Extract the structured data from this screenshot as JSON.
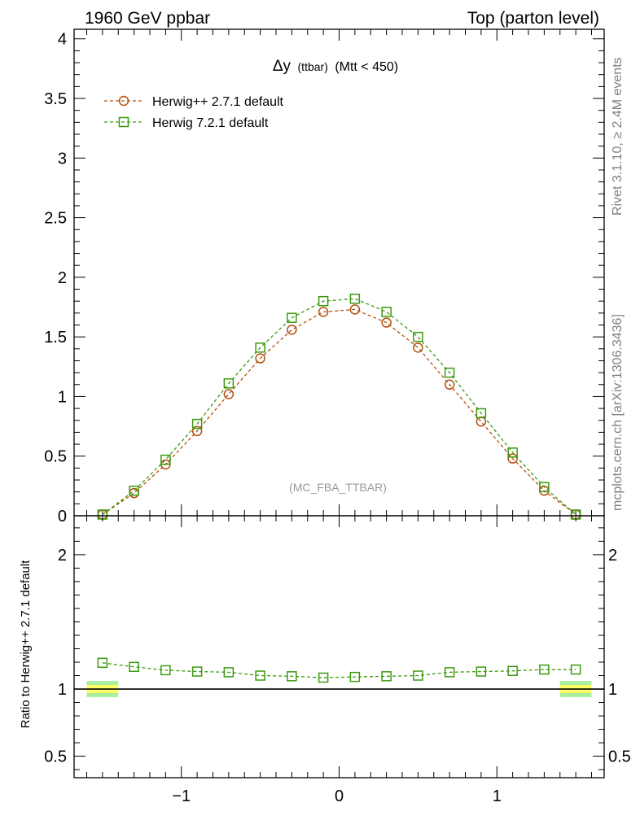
{
  "header": {
    "left": "1960 GeV ppbar",
    "right": "Top (parton level)"
  },
  "side_labels": {
    "rivet": "Rivet 3.1.10, ≥ 2.4M events",
    "mcplots": "mcplots.cern.ch [arXiv:1306.3436]"
  },
  "plot_title": {
    "symbol": "Δy",
    "small": "(ttbar)",
    "rest": "(Mtt < 450)"
  },
  "watermark": "(MC_FBA_TTBAR)",
  "ratio_ylabel": "Ratio to Herwig++ 2.7.1 default",
  "colors": {
    "herwigpp": "#b5510e",
    "herwig7": "#3c9a0f",
    "band_inner": "#ffff66",
    "band_outer": "#a8f0a0"
  },
  "chart_data": [
    {
      "type": "line",
      "panel": "main",
      "ylim": [
        0,
        4.08
      ],
      "xlim": [
        -1.68,
        1.68
      ],
      "yticks": [
        0,
        0.5,
        1,
        1.5,
        2,
        2.5,
        3,
        3.5,
        4
      ],
      "ytick_labels": [
        "0",
        "0.5",
        "1",
        "1.5",
        "2",
        "2.5",
        "3",
        "3.5",
        "4"
      ],
      "x": [
        -1.5,
        -1.3,
        -1.1,
        -0.9,
        -0.7,
        -0.5,
        -0.3,
        -0.1,
        0.1,
        0.3,
        0.5,
        0.7,
        0.9,
        1.1,
        1.3,
        1.5
      ],
      "series": [
        {
          "name": "Herwig++ 2.7.1 default",
          "marker": "circle",
          "values": [
            0.01,
            0.19,
            0.43,
            0.71,
            1.02,
            1.32,
            1.56,
            1.71,
            1.73,
            1.62,
            1.41,
            1.1,
            0.79,
            0.48,
            0.21,
            0.01
          ]
        },
        {
          "name": "Herwig 7.2.1 default",
          "marker": "square",
          "values": [
            0.01,
            0.21,
            0.47,
            0.77,
            1.11,
            1.41,
            1.66,
            1.8,
            1.82,
            1.71,
            1.5,
            1.2,
            0.86,
            0.53,
            0.24,
            0.01
          ]
        }
      ]
    },
    {
      "type": "line",
      "panel": "ratio",
      "ylim": [
        0.34,
        2.29
      ],
      "xlim": [
        -1.68,
        1.68
      ],
      "yticks": [
        0.5,
        1,
        2
      ],
      "ytick_labels": [
        "0.5",
        "1",
        "2"
      ],
      "xticks": [
        -1,
        0,
        1
      ],
      "xtick_labels": [
        "−1",
        "0",
        "1"
      ],
      "x": [
        -1.5,
        -1.3,
        -1.1,
        -0.9,
        -0.7,
        -0.5,
        -0.3,
        -0.1,
        0.1,
        0.3,
        0.5,
        0.7,
        0.9,
        1.1,
        1.3,
        1.5
      ],
      "reference": 1,
      "series": [
        {
          "name": "Herwig 7.2.1 default",
          "marker": "square",
          "values": [
            1.195,
            1.165,
            1.14,
            1.13,
            1.125,
            1.1,
            1.095,
            1.085,
            1.09,
            1.095,
            1.1,
            1.125,
            1.13,
            1.135,
            1.145,
            1.145
          ]
        }
      ],
      "band_x": [
        [
          -1.6,
          -1.4
        ],
        [
          1.4,
          1.6
        ]
      ],
      "band_inner": [
        0.97,
        1.03
      ],
      "band_outer": [
        0.94,
        1.06
      ]
    }
  ]
}
